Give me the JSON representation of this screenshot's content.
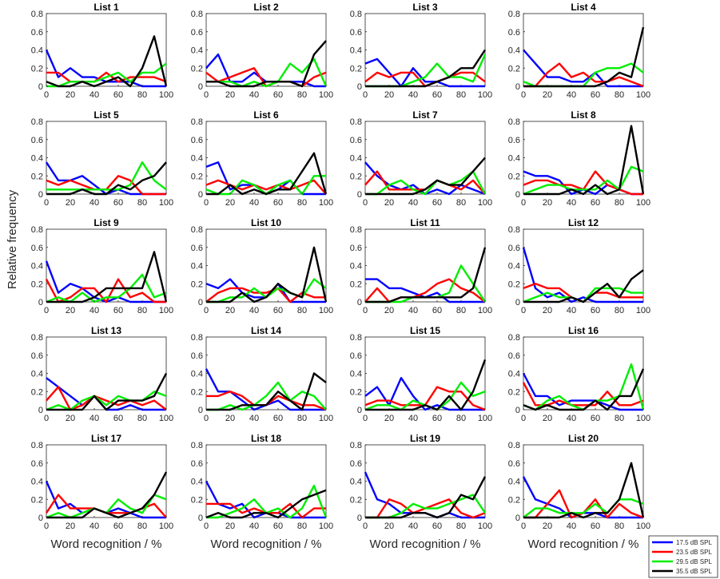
{
  "chart_data": {
    "type": "line",
    "layout": "5x4 small multiples",
    "ylabel": "Relative frequency",
    "xlabel": "Word recognition / %",
    "x": [
      0,
      10,
      20,
      30,
      40,
      50,
      60,
      70,
      80,
      90,
      100
    ],
    "xticks": [
      0,
      20,
      40,
      60,
      80,
      100
    ],
    "yticks": [
      0,
      0.2,
      0.4,
      0.6,
      0.8
    ],
    "ylim": [
      0,
      0.8
    ],
    "xlim": [
      0,
      100
    ],
    "grid": false,
    "legend_position": "bottom-right",
    "series_info": [
      {
        "name": "17.5 dB SPL",
        "color": "#0000ff"
      },
      {
        "name": "23.5 dB SPL",
        "color": "#ff0000"
      },
      {
        "name": "29.5 dB SPL",
        "color": "#00ee00"
      },
      {
        "name": "35.5 dB SPL",
        "color": "#000000"
      }
    ],
    "panels": [
      {
        "title": "List 1",
        "series": [
          [
            0.4,
            0.1,
            0.2,
            0.1,
            0.1,
            0.05,
            0.05,
            0.05,
            0.0,
            0.0,
            0.0
          ],
          [
            0.15,
            0.15,
            0.05,
            0.05,
            0.05,
            0.15,
            0.05,
            0.1,
            0.1,
            0.1,
            0.05
          ],
          [
            0.0,
            0.0,
            0.05,
            0.05,
            0.05,
            0.1,
            0.15,
            0.05,
            0.15,
            0.15,
            0.25
          ],
          [
            0.05,
            0.0,
            0.0,
            0.05,
            0.0,
            0.05,
            0.1,
            0.0,
            0.2,
            0.55,
            0.0
          ]
        ]
      },
      {
        "title": "List 2",
        "series": [
          [
            0.2,
            0.35,
            0.05,
            0.05,
            0.15,
            0.05,
            0.05,
            0.05,
            0.05,
            0.0,
            0.0
          ],
          [
            0.15,
            0.05,
            0.1,
            0.15,
            0.2,
            0.0,
            0.05,
            0.05,
            0.0,
            0.1,
            0.15
          ],
          [
            0.05,
            0.05,
            0.05,
            0.0,
            0.05,
            0.0,
            0.05,
            0.25,
            0.15,
            0.3,
            0.0
          ],
          [
            0.05,
            0.05,
            0.0,
            0.0,
            0.0,
            0.05,
            0.05,
            0.05,
            0.0,
            0.35,
            0.5
          ]
        ]
      },
      {
        "title": "List 3",
        "series": [
          [
            0.25,
            0.3,
            0.15,
            0.0,
            0.2,
            0.05,
            0.05,
            0.0,
            0.0,
            0.0,
            0.0
          ],
          [
            0.05,
            0.15,
            0.1,
            0.15,
            0.15,
            0.0,
            0.05,
            0.1,
            0.15,
            0.15,
            0.05
          ],
          [
            0.0,
            0.0,
            0.0,
            0.0,
            0.05,
            0.1,
            0.25,
            0.1,
            0.1,
            0.05,
            0.35
          ],
          [
            0.0,
            0.0,
            0.0,
            0.0,
            0.0,
            0.0,
            0.05,
            0.1,
            0.2,
            0.2,
            0.4
          ]
        ]
      },
      {
        "title": "List 4",
        "series": [
          [
            0.4,
            0.25,
            0.1,
            0.1,
            0.05,
            0.05,
            0.15,
            0.0,
            0.0,
            0.0,
            0.0
          ],
          [
            0.0,
            0.0,
            0.15,
            0.25,
            0.1,
            0.15,
            0.05,
            0.05,
            0.1,
            0.05,
            0.0
          ],
          [
            0.05,
            0.0,
            0.0,
            0.0,
            0.0,
            0.0,
            0.15,
            0.2,
            0.2,
            0.25,
            0.15
          ],
          [
            0.0,
            0.0,
            0.0,
            0.0,
            0.0,
            0.0,
            0.0,
            0.05,
            0.15,
            0.1,
            0.65
          ]
        ]
      },
      {
        "title": "List 5",
        "series": [
          [
            0.35,
            0.15,
            0.15,
            0.2,
            0.1,
            0.0,
            0.05,
            0.0,
            0.0,
            0.0,
            0.0
          ],
          [
            0.15,
            0.1,
            0.15,
            0.1,
            0.05,
            0.05,
            0.2,
            0.15,
            0.0,
            0.0,
            0.0
          ],
          [
            0.05,
            0.05,
            0.05,
            0.05,
            0.05,
            0.05,
            0.05,
            0.1,
            0.35,
            0.15,
            0.05
          ],
          [
            0.0,
            0.0,
            0.0,
            0.05,
            0.0,
            0.0,
            0.1,
            0.05,
            0.15,
            0.2,
            0.35
          ]
        ]
      },
      {
        "title": "List 6",
        "series": [
          [
            0.3,
            0.35,
            0.05,
            0.1,
            0.1,
            0.0,
            0.05,
            0.15,
            0.0,
            0.0,
            0.0
          ],
          [
            0.1,
            0.15,
            0.1,
            0.05,
            0.1,
            0.05,
            0.1,
            0.05,
            0.1,
            0.15,
            0.0
          ],
          [
            0.05,
            0.0,
            0.0,
            0.15,
            0.1,
            0.0,
            0.1,
            0.15,
            0.0,
            0.2,
            0.2
          ],
          [
            0.0,
            0.0,
            0.1,
            0.0,
            0.05,
            0.0,
            0.05,
            0.05,
            0.25,
            0.45,
            0.0
          ]
        ]
      },
      {
        "title": "List 7",
        "series": [
          [
            0.35,
            0.2,
            0.1,
            0.05,
            0.1,
            0.0,
            0.05,
            0.0,
            0.1,
            0.05,
            0.0
          ],
          [
            0.1,
            0.25,
            0.05,
            0.05,
            0.05,
            0.05,
            0.15,
            0.1,
            0.05,
            0.15,
            0.0
          ],
          [
            0.0,
            0.0,
            0.1,
            0.15,
            0.05,
            0.0,
            0.15,
            0.1,
            0.15,
            0.25,
            0.0
          ],
          [
            0.0,
            0.0,
            0.0,
            0.0,
            0.0,
            0.05,
            0.15,
            0.1,
            0.1,
            0.25,
            0.4
          ]
        ]
      },
      {
        "title": "List 8",
        "series": [
          [
            0.25,
            0.2,
            0.2,
            0.15,
            0.0,
            0.05,
            0.0,
            0.1,
            0.05,
            0.0,
            0.0
          ],
          [
            0.1,
            0.15,
            0.15,
            0.1,
            0.1,
            0.05,
            0.25,
            0.1,
            0.05,
            0.0,
            0.0
          ],
          [
            0.0,
            0.05,
            0.1,
            0.1,
            0.05,
            0.05,
            0.05,
            0.15,
            0.05,
            0.3,
            0.25
          ],
          [
            0.0,
            0.0,
            0.0,
            0.0,
            0.05,
            0.0,
            0.1,
            0.0,
            0.05,
            0.75,
            0.0
          ]
        ]
      },
      {
        "title": "List 9",
        "series": [
          [
            0.45,
            0.1,
            0.2,
            0.15,
            0.05,
            0.0,
            0.05,
            0.0,
            0.0,
            0.0,
            0.0
          ],
          [
            0.25,
            0.0,
            0.05,
            0.15,
            0.15,
            0.0,
            0.25,
            0.05,
            0.1,
            0.0,
            0.0
          ],
          [
            0.0,
            0.05,
            0.0,
            0.1,
            0.0,
            0.05,
            0.05,
            0.15,
            0.3,
            0.05,
            0.1
          ],
          [
            0.0,
            0.0,
            0.0,
            0.0,
            0.05,
            0.15,
            0.15,
            0.15,
            0.15,
            0.55,
            0.0
          ]
        ]
      },
      {
        "title": "List 10",
        "series": [
          [
            0.2,
            0.15,
            0.25,
            0.1,
            0.05,
            0.05,
            0.2,
            0.0,
            0.0,
            0.0,
            0.0
          ],
          [
            0.0,
            0.1,
            0.15,
            0.15,
            0.1,
            0.1,
            0.15,
            0.0,
            0.1,
            0.05,
            0.05
          ],
          [
            0.0,
            0.0,
            0.05,
            0.05,
            0.15,
            0.05,
            0.15,
            0.1,
            0.05,
            0.25,
            0.15
          ],
          [
            0.0,
            0.0,
            0.0,
            0.1,
            0.0,
            0.05,
            0.2,
            0.1,
            0.05,
            0.6,
            0.0
          ]
        ]
      },
      {
        "title": "List 11",
        "series": [
          [
            0.25,
            0.25,
            0.15,
            0.15,
            0.1,
            0.05,
            0.1,
            0.0,
            0.0,
            0.0,
            0.0
          ],
          [
            0.0,
            0.15,
            0.0,
            0.05,
            0.05,
            0.1,
            0.2,
            0.25,
            0.15,
            0.1,
            0.0
          ],
          [
            0.0,
            0.0,
            0.0,
            0.0,
            0.05,
            0.05,
            0.05,
            0.1,
            0.4,
            0.2,
            0.0
          ],
          [
            0.0,
            0.0,
            0.0,
            0.05,
            0.05,
            0.05,
            0.05,
            0.05,
            0.05,
            0.15,
            0.6
          ]
        ]
      },
      {
        "title": "List 12",
        "series": [
          [
            0.6,
            0.15,
            0.05,
            0.1,
            0.0,
            0.05,
            0.0,
            0.0,
            0.0,
            0.0,
            0.0
          ],
          [
            0.15,
            0.2,
            0.15,
            0.15,
            0.05,
            0.0,
            0.1,
            0.1,
            0.05,
            0.05,
            0.05
          ],
          [
            0.0,
            0.05,
            0.1,
            0.05,
            0.05,
            0.0,
            0.15,
            0.15,
            0.15,
            0.1,
            0.1
          ],
          [
            0.0,
            0.0,
            0.0,
            0.0,
            0.05,
            0.0,
            0.1,
            0.2,
            0.05,
            0.25,
            0.35
          ]
        ]
      },
      {
        "title": "List 13",
        "series": [
          [
            0.35,
            0.25,
            0.15,
            0.05,
            0.15,
            0.0,
            0.0,
            0.05,
            0.0,
            0.0,
            0.0
          ],
          [
            0.1,
            0.25,
            0.0,
            0.05,
            0.15,
            0.1,
            0.05,
            0.1,
            0.05,
            0.1,
            0.0
          ],
          [
            0.0,
            0.05,
            0.0,
            0.1,
            0.15,
            0.05,
            0.15,
            0.1,
            0.1,
            0.2,
            0.15
          ],
          [
            0.0,
            0.0,
            0.0,
            0.0,
            0.15,
            0.0,
            0.1,
            0.1,
            0.1,
            0.15,
            0.4
          ]
        ]
      },
      {
        "title": "List 14",
        "series": [
          [
            0.45,
            0.2,
            0.2,
            0.1,
            0.0,
            0.05,
            0.1,
            0.0,
            0.0,
            0.0,
            0.0
          ],
          [
            0.15,
            0.15,
            0.2,
            0.15,
            0.05,
            0.05,
            0.15,
            0.1,
            0.05,
            0.05,
            0.0
          ],
          [
            0.0,
            0.0,
            0.05,
            0.0,
            0.05,
            0.15,
            0.3,
            0.1,
            0.2,
            0.15,
            0.0
          ],
          [
            0.0,
            0.0,
            0.0,
            0.05,
            0.05,
            0.05,
            0.2,
            0.1,
            0.0,
            0.4,
            0.3
          ]
        ]
      },
      {
        "title": "List 15",
        "series": [
          [
            0.15,
            0.25,
            0.05,
            0.35,
            0.15,
            0.0,
            0.05,
            0.0,
            0.0,
            0.0,
            0.0
          ],
          [
            0.05,
            0.1,
            0.1,
            0.05,
            0.05,
            0.05,
            0.25,
            0.2,
            0.2,
            0.05,
            0.0
          ],
          [
            0.0,
            0.05,
            0.05,
            0.0,
            0.1,
            0.05,
            0.0,
            0.1,
            0.3,
            0.15,
            0.2
          ],
          [
            0.0,
            0.0,
            0.0,
            0.0,
            0.0,
            0.05,
            0.0,
            0.15,
            0.0,
            0.2,
            0.55
          ]
        ]
      },
      {
        "title": "List 16",
        "series": [
          [
            0.4,
            0.15,
            0.15,
            0.05,
            0.1,
            0.1,
            0.1,
            0.05,
            0.0,
            0.0,
            0.0
          ],
          [
            0.3,
            0.05,
            0.05,
            0.1,
            0.05,
            0.05,
            0.05,
            0.2,
            0.05,
            0.05,
            0.1
          ],
          [
            0.05,
            0.0,
            0.1,
            0.15,
            0.05,
            0.0,
            0.1,
            0.1,
            0.15,
            0.5,
            0.0
          ],
          [
            0.05,
            0.0,
            0.05,
            0.0,
            0.0,
            0.0,
            0.1,
            0.0,
            0.15,
            0.15,
            0.45
          ]
        ]
      },
      {
        "title": "List 17",
        "series": [
          [
            0.4,
            0.1,
            0.15,
            0.05,
            0.1,
            0.05,
            0.1,
            0.05,
            0.0,
            0.0,
            0.0
          ],
          [
            0.05,
            0.25,
            0.1,
            0.1,
            0.1,
            0.05,
            0.05,
            0.05,
            0.1,
            0.15,
            0.0
          ],
          [
            0.0,
            0.05,
            0.0,
            0.05,
            0.1,
            0.05,
            0.2,
            0.1,
            0.05,
            0.25,
            0.2
          ],
          [
            0.0,
            0.0,
            0.0,
            0.0,
            0.1,
            0.05,
            0.0,
            0.05,
            0.1,
            0.25,
            0.5
          ]
        ]
      },
      {
        "title": "List 18",
        "series": [
          [
            0.4,
            0.15,
            0.1,
            0.15,
            0.0,
            0.05,
            0.05,
            0.0,
            0.0,
            0.0,
            0.0
          ],
          [
            0.15,
            0.15,
            0.15,
            0.05,
            0.1,
            0.05,
            0.05,
            0.15,
            0.0,
            0.1,
            0.1
          ],
          [
            0.0,
            0.0,
            0.05,
            0.1,
            0.2,
            0.05,
            0.1,
            0.0,
            0.1,
            0.35,
            0.0
          ],
          [
            0.0,
            0.05,
            0.0,
            0.0,
            0.05,
            0.05,
            0.0,
            0.1,
            0.2,
            0.25,
            0.3
          ]
        ]
      },
      {
        "title": "List 19",
        "series": [
          [
            0.5,
            0.2,
            0.15,
            0.05,
            0.05,
            0.05,
            0.0,
            0.05,
            0.0,
            0.0,
            0.0
          ],
          [
            0.0,
            0.0,
            0.2,
            0.15,
            0.05,
            0.1,
            0.15,
            0.2,
            0.05,
            0.0,
            0.05
          ],
          [
            0.0,
            0.0,
            0.0,
            0.05,
            0.15,
            0.1,
            0.1,
            0.15,
            0.2,
            0.25,
            0.05
          ],
          [
            0.0,
            0.0,
            0.0,
            0.0,
            0.05,
            0.05,
            0.0,
            0.05,
            0.25,
            0.2,
            0.45
          ]
        ]
      },
      {
        "title": "List 20",
        "series": [
          [
            0.45,
            0.2,
            0.15,
            0.1,
            0.0,
            0.05,
            0.05,
            0.0,
            0.0,
            0.0,
            0.0
          ],
          [
            0.0,
            0.0,
            0.15,
            0.3,
            0.0,
            0.05,
            0.2,
            0.0,
            0.15,
            0.05,
            0.0
          ],
          [
            0.0,
            0.1,
            0.1,
            0.05,
            0.05,
            0.05,
            0.15,
            0.05,
            0.2,
            0.2,
            0.15
          ],
          [
            0.0,
            0.0,
            0.0,
            0.0,
            0.05,
            0.0,
            0.05,
            0.05,
            0.2,
            0.6,
            0.0
          ]
        ]
      }
    ]
  }
}
